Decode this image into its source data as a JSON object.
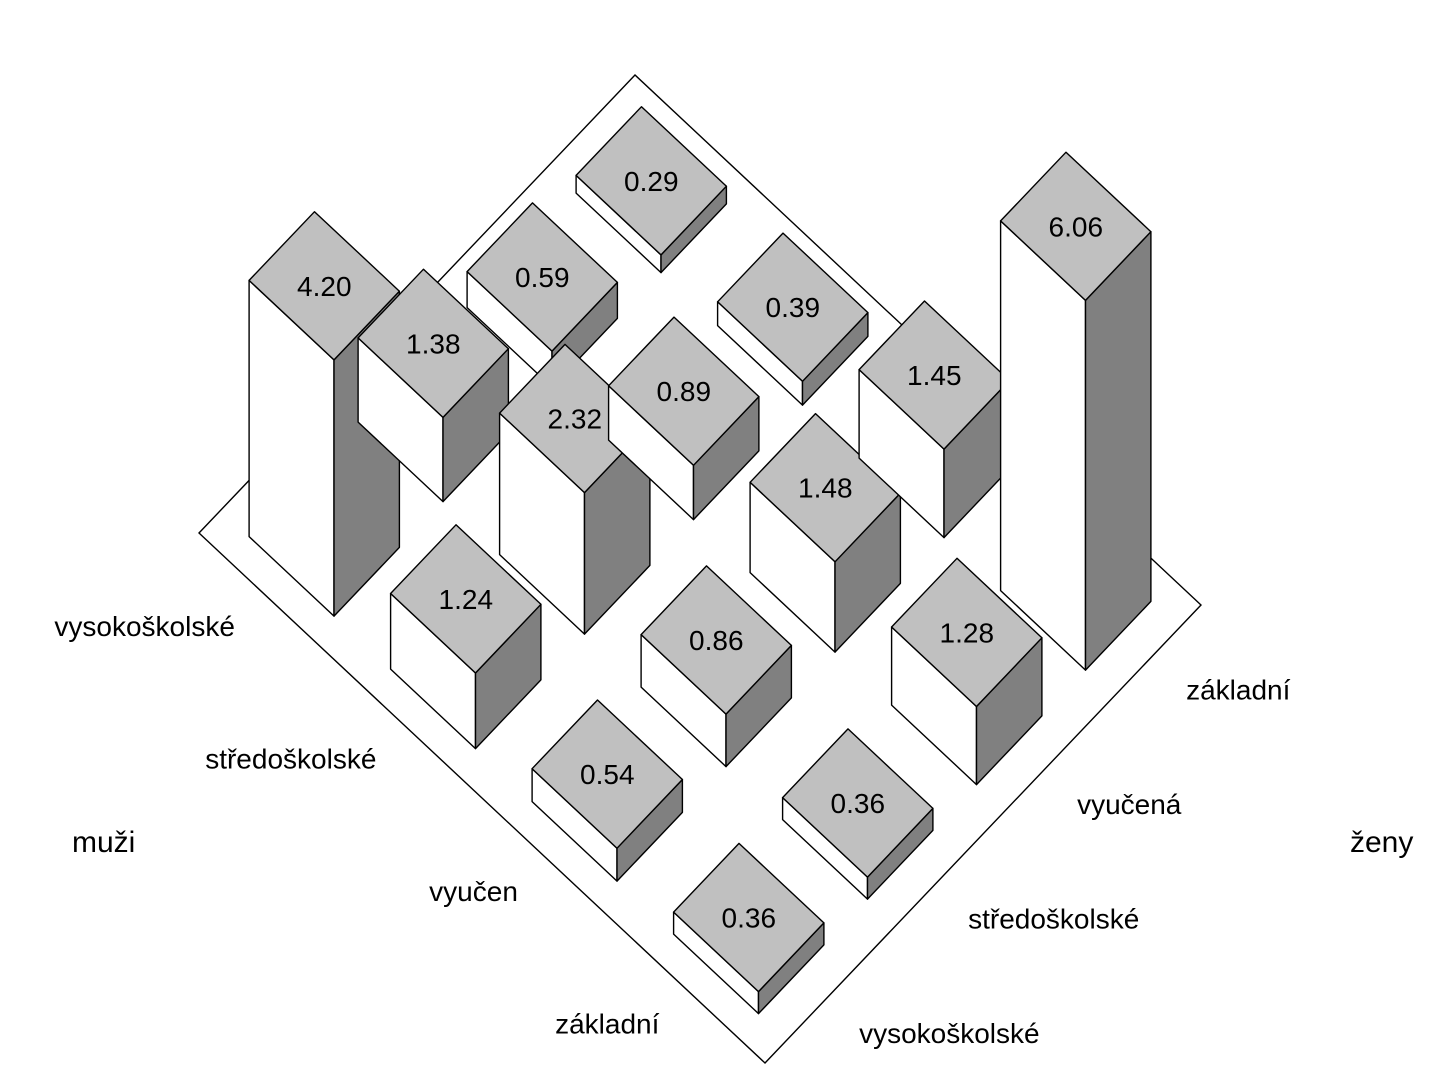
{
  "chart_data": {
    "type": "bar3d",
    "x_axis_title": "muži",
    "y_axis_title": "ženy",
    "x_categories": [
      "základní",
      "vyučen",
      "středoškolské",
      "vysokoškolské"
    ],
    "y_categories": [
      "vysokoškolské",
      "středoškolské",
      "vyučená",
      "základní"
    ],
    "values": [
      [
        0.36,
        0.54,
        1.24,
        4.2
      ],
      [
        0.36,
        0.86,
        2.32,
        1.38
      ],
      [
        1.28,
        1.48,
        0.89,
        0.59
      ],
      [
        6.06,
        1.45,
        0.39,
        0.29
      ]
    ],
    "value_labels": [
      [
        "0.36",
        "0.54",
        "1.24",
        "4.20"
      ],
      [
        "0.36",
        "0.86",
        "2.32",
        "1.38"
      ],
      [
        "1.28",
        "1.48",
        "0.89",
        "0.59"
      ],
      [
        "6.06",
        "1.45",
        "0.39",
        "0.29"
      ]
    ],
    "colors": {
      "top": "#c0c0c0",
      "left": "#ffffff",
      "right": "#808080",
      "edge": "#000000"
    }
  }
}
